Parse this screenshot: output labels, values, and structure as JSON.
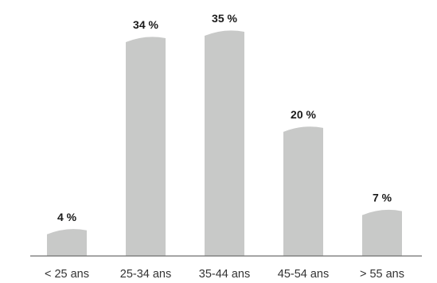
{
  "chart_data": {
    "type": "bar",
    "categories": [
      "< 25 ans",
      "25-34 ans",
      "35-44 ans",
      "45-54 ans",
      "> 55 ans"
    ],
    "values": [
      4,
      34,
      35,
      20,
      7
    ],
    "value_labels": [
      "4 %",
      "34 %",
      "35 %",
      "20 %",
      "7 %"
    ],
    "ylim": [
      0,
      35
    ],
    "grid": false,
    "title": "",
    "xlabel": "",
    "ylabel": "",
    "bar_color": "#c8c9c8"
  }
}
